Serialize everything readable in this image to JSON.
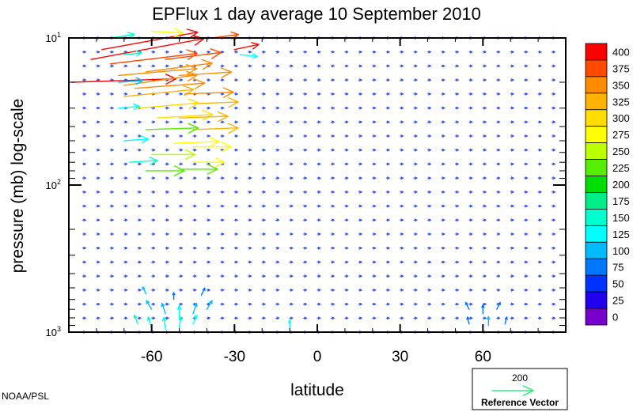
{
  "chart_data": {
    "type": "vector-field",
    "title": "EPFlux  1 day average  10 September 2010",
    "xlabel": "latitude",
    "ylabel": "pressure (mb)  log-scale",
    "x_ticks": [
      -60,
      -30,
      0,
      30,
      60
    ],
    "x_tick_labels": [
      "-60",
      "-30",
      "0",
      "30",
      "60"
    ],
    "xlim": [
      -90,
      90
    ],
    "ylim": [
      1000,
      10
    ],
    "y_scale": "log",
    "y_ticks": [
      {
        "value": 10,
        "base": "10",
        "exp": "1"
      },
      {
        "value": 100,
        "base": "10",
        "exp": "2"
      },
      {
        "value": 1000,
        "base": "10",
        "exp": "3"
      }
    ],
    "colorbar": {
      "levels": [
        "400",
        "375",
        "350",
        "325",
        "300",
        "275",
        "250",
        "225",
        "200",
        "175",
        "150",
        "125",
        "100",
        "75",
        "50",
        "25",
        "0"
      ],
      "colors": [
        "#ff0000",
        "#ff4a00",
        "#ff8c00",
        "#ffb300",
        "#ffdd00",
        "#ffff00",
        "#bbff00",
        "#55ee00",
        "#00dd00",
        "#00ee88",
        "#00ffcc",
        "#00ffff",
        "#00bbff",
        "#0077ff",
        "#0033ff",
        "#2200ee",
        "#7700cc"
      ]
    },
    "reference_vector": {
      "value": "200",
      "label": "Reference Vector",
      "color": "#33ee88"
    },
    "credit": "NOAA/PSL",
    "vectors": [
      {
        "lat": -89,
        "p": 20,
        "u": 60,
        "v": 2,
        "mag": 420
      },
      {
        "lat": -82,
        "p": 14,
        "u": 65,
        "v": 12,
        "mag": 430
      },
      {
        "lat": -78,
        "p": 12,
        "u": 55,
        "v": 10,
        "mag": 400
      },
      {
        "lat": -75,
        "p": 15,
        "u": 50,
        "v": 6,
        "mag": 380
      },
      {
        "lat": -72,
        "p": 18,
        "u": 45,
        "v": 4,
        "mag": 360
      },
      {
        "lat": -70,
        "p": 21,
        "u": 42,
        "v": 6,
        "mag": 350
      },
      {
        "lat": -70,
        "p": 25,
        "u": 40,
        "v": 4,
        "mag": 340
      },
      {
        "lat": -66,
        "p": 22,
        "u": 40,
        "v": 3,
        "mag": 360
      },
      {
        "lat": -62,
        "p": 17,
        "u": 38,
        "v": 5,
        "mag": 370
      },
      {
        "lat": -55,
        "p": 14,
        "u": 32,
        "v": 4,
        "mag": 380
      },
      {
        "lat": -50,
        "p": 18,
        "u": 30,
        "v": 2,
        "mag": 360
      },
      {
        "lat": -48,
        "p": 24,
        "u": 28,
        "v": 1,
        "mag": 350
      },
      {
        "lat": -45,
        "p": 28,
        "u": 26,
        "v": 1,
        "mag": 340
      },
      {
        "lat": -65,
        "p": 30,
        "u": 35,
        "v": 3,
        "mag": 310
      },
      {
        "lat": -58,
        "p": 35,
        "u": 32,
        "v": 2,
        "mag": 300
      },
      {
        "lat": -50,
        "p": 35,
        "u": 28,
        "v": 1,
        "mag": 340
      },
      {
        "lat": -45,
        "p": 42,
        "u": 26,
        "v": 1,
        "mag": 330
      },
      {
        "lat": -62,
        "p": 42,
        "u": 30,
        "v": 1,
        "mag": 230
      },
      {
        "lat": -52,
        "p": 52,
        "u": 26,
        "v": 1,
        "mag": 290
      },
      {
        "lat": -45,
        "p": 55,
        "u": 22,
        "v": 0,
        "mag": 280
      },
      {
        "lat": -70,
        "p": 50,
        "u": 14,
        "v": 1,
        "mag": 140
      },
      {
        "lat": -68,
        "p": 70,
        "u": 16,
        "v": 1,
        "mag": 150
      },
      {
        "lat": -60,
        "p": 62,
        "u": 25,
        "v": 0,
        "mag": 270
      },
      {
        "lat": -45,
        "p": 70,
        "u": 18,
        "v": 0,
        "mag": 275
      },
      {
        "lat": -62,
        "p": 80,
        "u": 22,
        "v": 0,
        "mag": 230
      },
      {
        "lat": -50,
        "p": 78,
        "u": 22,
        "v": 0,
        "mag": 240
      },
      {
        "lat": -72,
        "p": 30,
        "u": 12,
        "v": 1,
        "mag": 140
      },
      {
        "lat": -70,
        "p": 13,
        "u": 10,
        "v": 1,
        "mag": 170
      },
      {
        "lat": -60,
        "p": 9,
        "u": 18,
        "v": -1,
        "mag": 290
      },
      {
        "lat": -75,
        "p": 10,
        "u": 14,
        "v": 2,
        "mag": 160
      },
      {
        "lat": -72,
        "p": 20,
        "u": 14,
        "v": 1,
        "mag": 120
      },
      {
        "lat": -38,
        "p": 10,
        "u": 15,
        "v": 2,
        "mag": 380
      },
      {
        "lat": -30,
        "p": 12,
        "u": 14,
        "v": 3,
        "mag": 400
      },
      {
        "lat": -28,
        "p": 13,
        "u": 10,
        "v": -1,
        "mag": 140
      },
      {
        "lat": -60,
        "p": 700,
        "u": -3,
        "v": 5,
        "mag": 120
      },
      {
        "lat": -55,
        "p": 750,
        "u": -2,
        "v": 6,
        "mag": 110
      },
      {
        "lat": -50,
        "p": 800,
        "u": 0,
        "v": 7,
        "mag": 130
      },
      {
        "lat": -45,
        "p": 750,
        "u": 2,
        "v": 6,
        "mag": 110
      },
      {
        "lat": -40,
        "p": 700,
        "u": 3,
        "v": 5,
        "mag": 100
      },
      {
        "lat": -62,
        "p": 550,
        "u": -2,
        "v": 4,
        "mag": 100
      },
      {
        "lat": -52,
        "p": 600,
        "u": 0,
        "v": 4,
        "mag": 90
      },
      {
        "lat": -42,
        "p": 560,
        "u": 2,
        "v": 4,
        "mag": 85
      },
      {
        "lat": -65,
        "p": 880,
        "u": -2,
        "v": 5,
        "mag": 150
      },
      {
        "lat": -60,
        "p": 930,
        "u": -2,
        "v": 6,
        "mag": 150
      },
      {
        "lat": -55,
        "p": 960,
        "u": -1,
        "v": 7,
        "mag": 140
      },
      {
        "lat": -50,
        "p": 930,
        "u": 1,
        "v": 6,
        "mag": 150
      },
      {
        "lat": -45,
        "p": 880,
        "u": 2,
        "v": 5,
        "mag": 140
      },
      {
        "lat": -10,
        "p": 950,
        "u": 0,
        "v": 5,
        "mag": 130
      },
      {
        "lat": 55,
        "p": 700,
        "u": -2,
        "v": 4,
        "mag": 80
      },
      {
        "lat": 60,
        "p": 750,
        "u": 0,
        "v": 5,
        "mag": 90
      },
      {
        "lat": 65,
        "p": 700,
        "u": 2,
        "v": 4,
        "mag": 80
      },
      {
        "lat": 55,
        "p": 880,
        "u": -1,
        "v": 4,
        "mag": 90
      },
      {
        "lat": 62,
        "p": 900,
        "u": 0,
        "v": 5,
        "mag": 100
      },
      {
        "lat": 68,
        "p": 880,
        "u": 1,
        "v": 4,
        "mag": 90
      }
    ]
  }
}
